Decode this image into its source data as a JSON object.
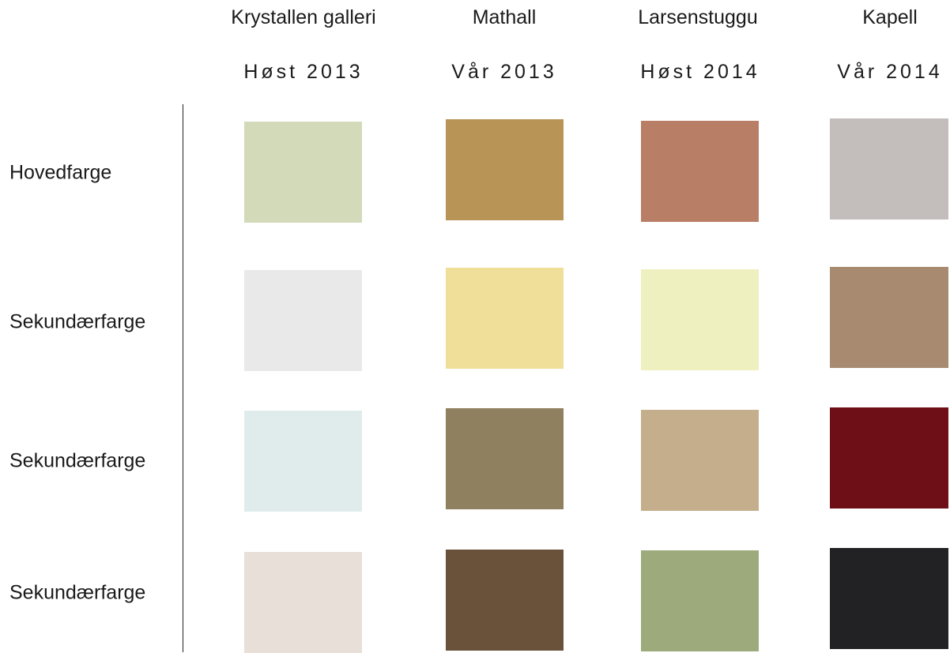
{
  "columns": [
    {
      "name": "Krystallen galleri",
      "season": "Høst 2013"
    },
    {
      "name": "Mathall",
      "season": "Vår 2013"
    },
    {
      "name": "Larsenstuggu",
      "season": "Høst 2014"
    },
    {
      "name": "Kapell",
      "season": "Vår 2014"
    }
  ],
  "rows": [
    {
      "label": "Hovedfarge"
    },
    {
      "label": "Sekundærfarge"
    },
    {
      "label": "Sekundærfarge"
    },
    {
      "label": "Sekundærfarge"
    }
  ],
  "swatches": [
    [
      "#d3dab9",
      "#b89456",
      "#b87e66",
      "#c3bdbc"
    ],
    [
      "#e9e9e9",
      "#efdf98",
      "#eef0c0",
      "#a88a71"
    ],
    [
      "#e0ecec",
      "#8f805f",
      "#c5ae8b",
      "#6e0f17"
    ],
    [
      "#e7dfd8",
      "#6a523a",
      "#9daa7b",
      "#222124"
    ]
  ]
}
